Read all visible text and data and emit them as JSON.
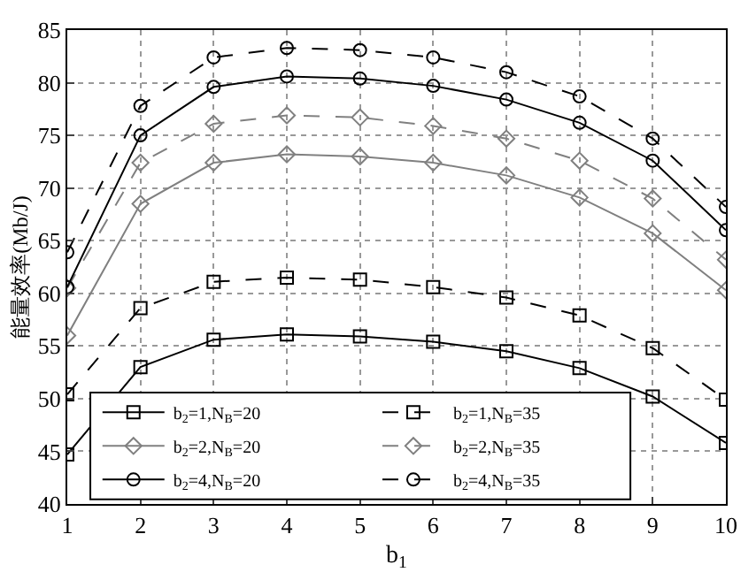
{
  "chart_data": {
    "type": "line",
    "xlabel": "b$_{1}$",
    "ylabel": "能量效率(Mb/J)",
    "x": [
      1,
      2,
      3,
      4,
      5,
      6,
      7,
      8,
      9,
      10
    ],
    "xlim": [
      1,
      10
    ],
    "xticks": [
      1,
      2,
      3,
      4,
      5,
      6,
      7,
      8,
      9,
      10
    ],
    "ylim": [
      40,
      85
    ],
    "yticks": [
      40,
      45,
      50,
      55,
      60,
      65,
      70,
      75,
      80,
      85
    ],
    "grid": true,
    "legend": "bottom",
    "series": [
      {
        "name": "b$_{2}$=1,N$_{B}$=20",
        "color": "#000000",
        "marker": "square",
        "line_style": "solid",
        "values": [
          44.7,
          53.0,
          55.6,
          56.1,
          55.9,
          55.4,
          54.5,
          52.9,
          50.2,
          45.8
        ]
      },
      {
        "name": "b$_{2}$=1,N$_{B}$=35",
        "color": "#000000",
        "marker": "square",
        "line_style": "dashed",
        "values": [
          50.4,
          58.6,
          61.1,
          61.5,
          61.3,
          60.6,
          59.6,
          57.9,
          54.8,
          49.9
        ]
      },
      {
        "name": "b$_{2}$=2,N$_{B}$=20",
        "color": "#808080",
        "marker": "diamond",
        "line_style": "solid",
        "values": [
          56.0,
          68.5,
          72.4,
          73.2,
          73.0,
          72.4,
          71.2,
          69.1,
          65.7,
          60.3
        ]
      },
      {
        "name": "b$_{2}$=2,N$_{B}$=35",
        "color": "#808080",
        "marker": "diamond",
        "line_style": "dashed",
        "values": [
          60.5,
          72.4,
          76.1,
          76.9,
          76.7,
          75.9,
          74.7,
          72.6,
          69.0,
          63.2
        ]
      },
      {
        "name": "b$_{2}$=4,N$_{B}$=20",
        "color": "#000000",
        "marker": "circle",
        "line_style": "solid",
        "values": [
          60.6,
          75.0,
          79.6,
          80.6,
          80.4,
          79.7,
          78.4,
          76.2,
          72.6,
          66.0
        ]
      },
      {
        "name": "b$_{2}$=4,N$_{B}$=35",
        "color": "#000000",
        "marker": "circle",
        "line_style": "dashed",
        "values": [
          63.9,
          77.8,
          82.4,
          83.3,
          83.1,
          82.4,
          81.0,
          78.7,
          74.7,
          68.2
        ]
      }
    ]
  }
}
